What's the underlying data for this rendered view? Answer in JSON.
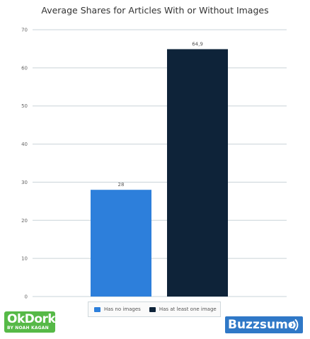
{
  "chart_data": {
    "type": "bar",
    "title": "Average Shares for Articles With or Without Images",
    "xlabel": "",
    "ylabel": "",
    "categories": [
      "Has no images",
      "Has at least one image"
    ],
    "values": [
      28,
      64.9
    ],
    "value_labels": [
      "28",
      "64,9"
    ],
    "ylim": [
      0,
      70
    ],
    "yticks": [
      0,
      10,
      20,
      30,
      40,
      50,
      60,
      70
    ],
    "grid": true,
    "legend": "bottom-center",
    "colors": [
      "#2d7fdb",
      "#0e2339"
    ],
    "gridline_color": "#c9d3d8",
    "tick_color": "#666666"
  },
  "logos": {
    "okdork": {
      "text": "OkDork",
      "subtext": "BY NOAH KAGAN",
      "color": "#56b947"
    },
    "buzzsumo": {
      "text": "Buzzsumo",
      "color": "#2f78c7",
      "icon": "wifi-wave-icon"
    }
  }
}
